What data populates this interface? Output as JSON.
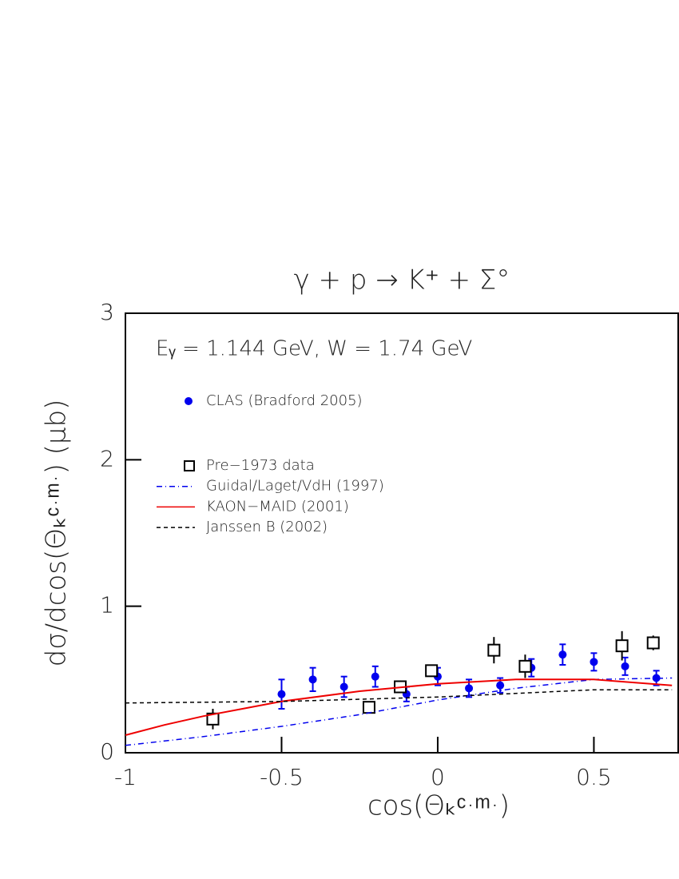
{
  "chart_data": {
    "type": "scatter",
    "title": "γ + p → K⁺ + Σ°",
    "annotation": "Eᵧ = 1.144 GeV,    W = 1.74 GeV",
    "x_label": "cos(Θₖᶜ·ᵐ·)",
    "y_label": "dσ/dcos(Θₖᶜ·ᵐ·) (μb)",
    "xlim": [
      -1,
      0.77
    ],
    "ylim": [
      0,
      3
    ],
    "xticks": [
      -1,
      -0.5,
      0,
      0.5
    ],
    "yticks": [
      0,
      1,
      2,
      3
    ],
    "series": [
      {
        "name": "CLAS (Bradford 2005)",
        "type": "scatter",
        "marker": "dot",
        "color": "#0000ee",
        "x": [
          -0.5,
          -0.4,
          -0.3,
          -0.2,
          -0.1,
          0,
          0.1,
          0.2,
          0.3,
          0.4,
          0.5,
          0.6,
          0.7
        ],
        "values": [
          0.4,
          0.5,
          0.45,
          0.52,
          0.4,
          0.52,
          0.44,
          0.46,
          0.58,
          0.67,
          0.62,
          0.59,
          0.51
        ],
        "errors": [
          0.1,
          0.08,
          0.07,
          0.07,
          0.05,
          0.06,
          0.06,
          0.05,
          0.06,
          0.07,
          0.06,
          0.06,
          0.05
        ]
      },
      {
        "name": "Pre−1973 data",
        "type": "scatter",
        "marker": "square",
        "color": "#000000",
        "x": [
          -0.72,
          -0.22,
          -0.12,
          -0.02,
          0.18,
          0.28,
          0.59,
          0.69
        ],
        "values": [
          0.23,
          0.31,
          0.45,
          0.56,
          0.7,
          0.59,
          0.73,
          0.75
        ],
        "errors": [
          0.07,
          0.03,
          0.04,
          0.03,
          0.09,
          0.08,
          0.1,
          0.05
        ]
      },
      {
        "name": "Guidal/Laget/VdH (1997)",
        "type": "line",
        "dash": "7 4 1 4",
        "color": "#0000ee",
        "x": [
          -1,
          -0.75,
          -0.5,
          -0.25,
          0,
          0.25,
          0.5,
          0.75
        ],
        "values": [
          0.05,
          0.11,
          0.18,
          0.26,
          0.36,
          0.44,
          0.5,
          0.51
        ]
      },
      {
        "name": "KAON−MAID (2001)",
        "type": "line",
        "dash": "none",
        "color": "#ee0000",
        "x": [
          -1,
          -0.875,
          -0.75,
          -0.5,
          -0.25,
          0,
          0.25,
          0.5,
          0.75
        ],
        "values": [
          0.12,
          0.19,
          0.25,
          0.35,
          0.42,
          0.47,
          0.5,
          0.5,
          0.46
        ]
      },
      {
        "name": "Janssen B (2002)",
        "type": "line",
        "dash": "5 4",
        "color": "#000000",
        "x": [
          -1,
          -0.5,
          0,
          0.5,
          0.75
        ],
        "values": [
          0.34,
          0.35,
          0.38,
          0.43,
          0.43
        ]
      }
    ]
  }
}
